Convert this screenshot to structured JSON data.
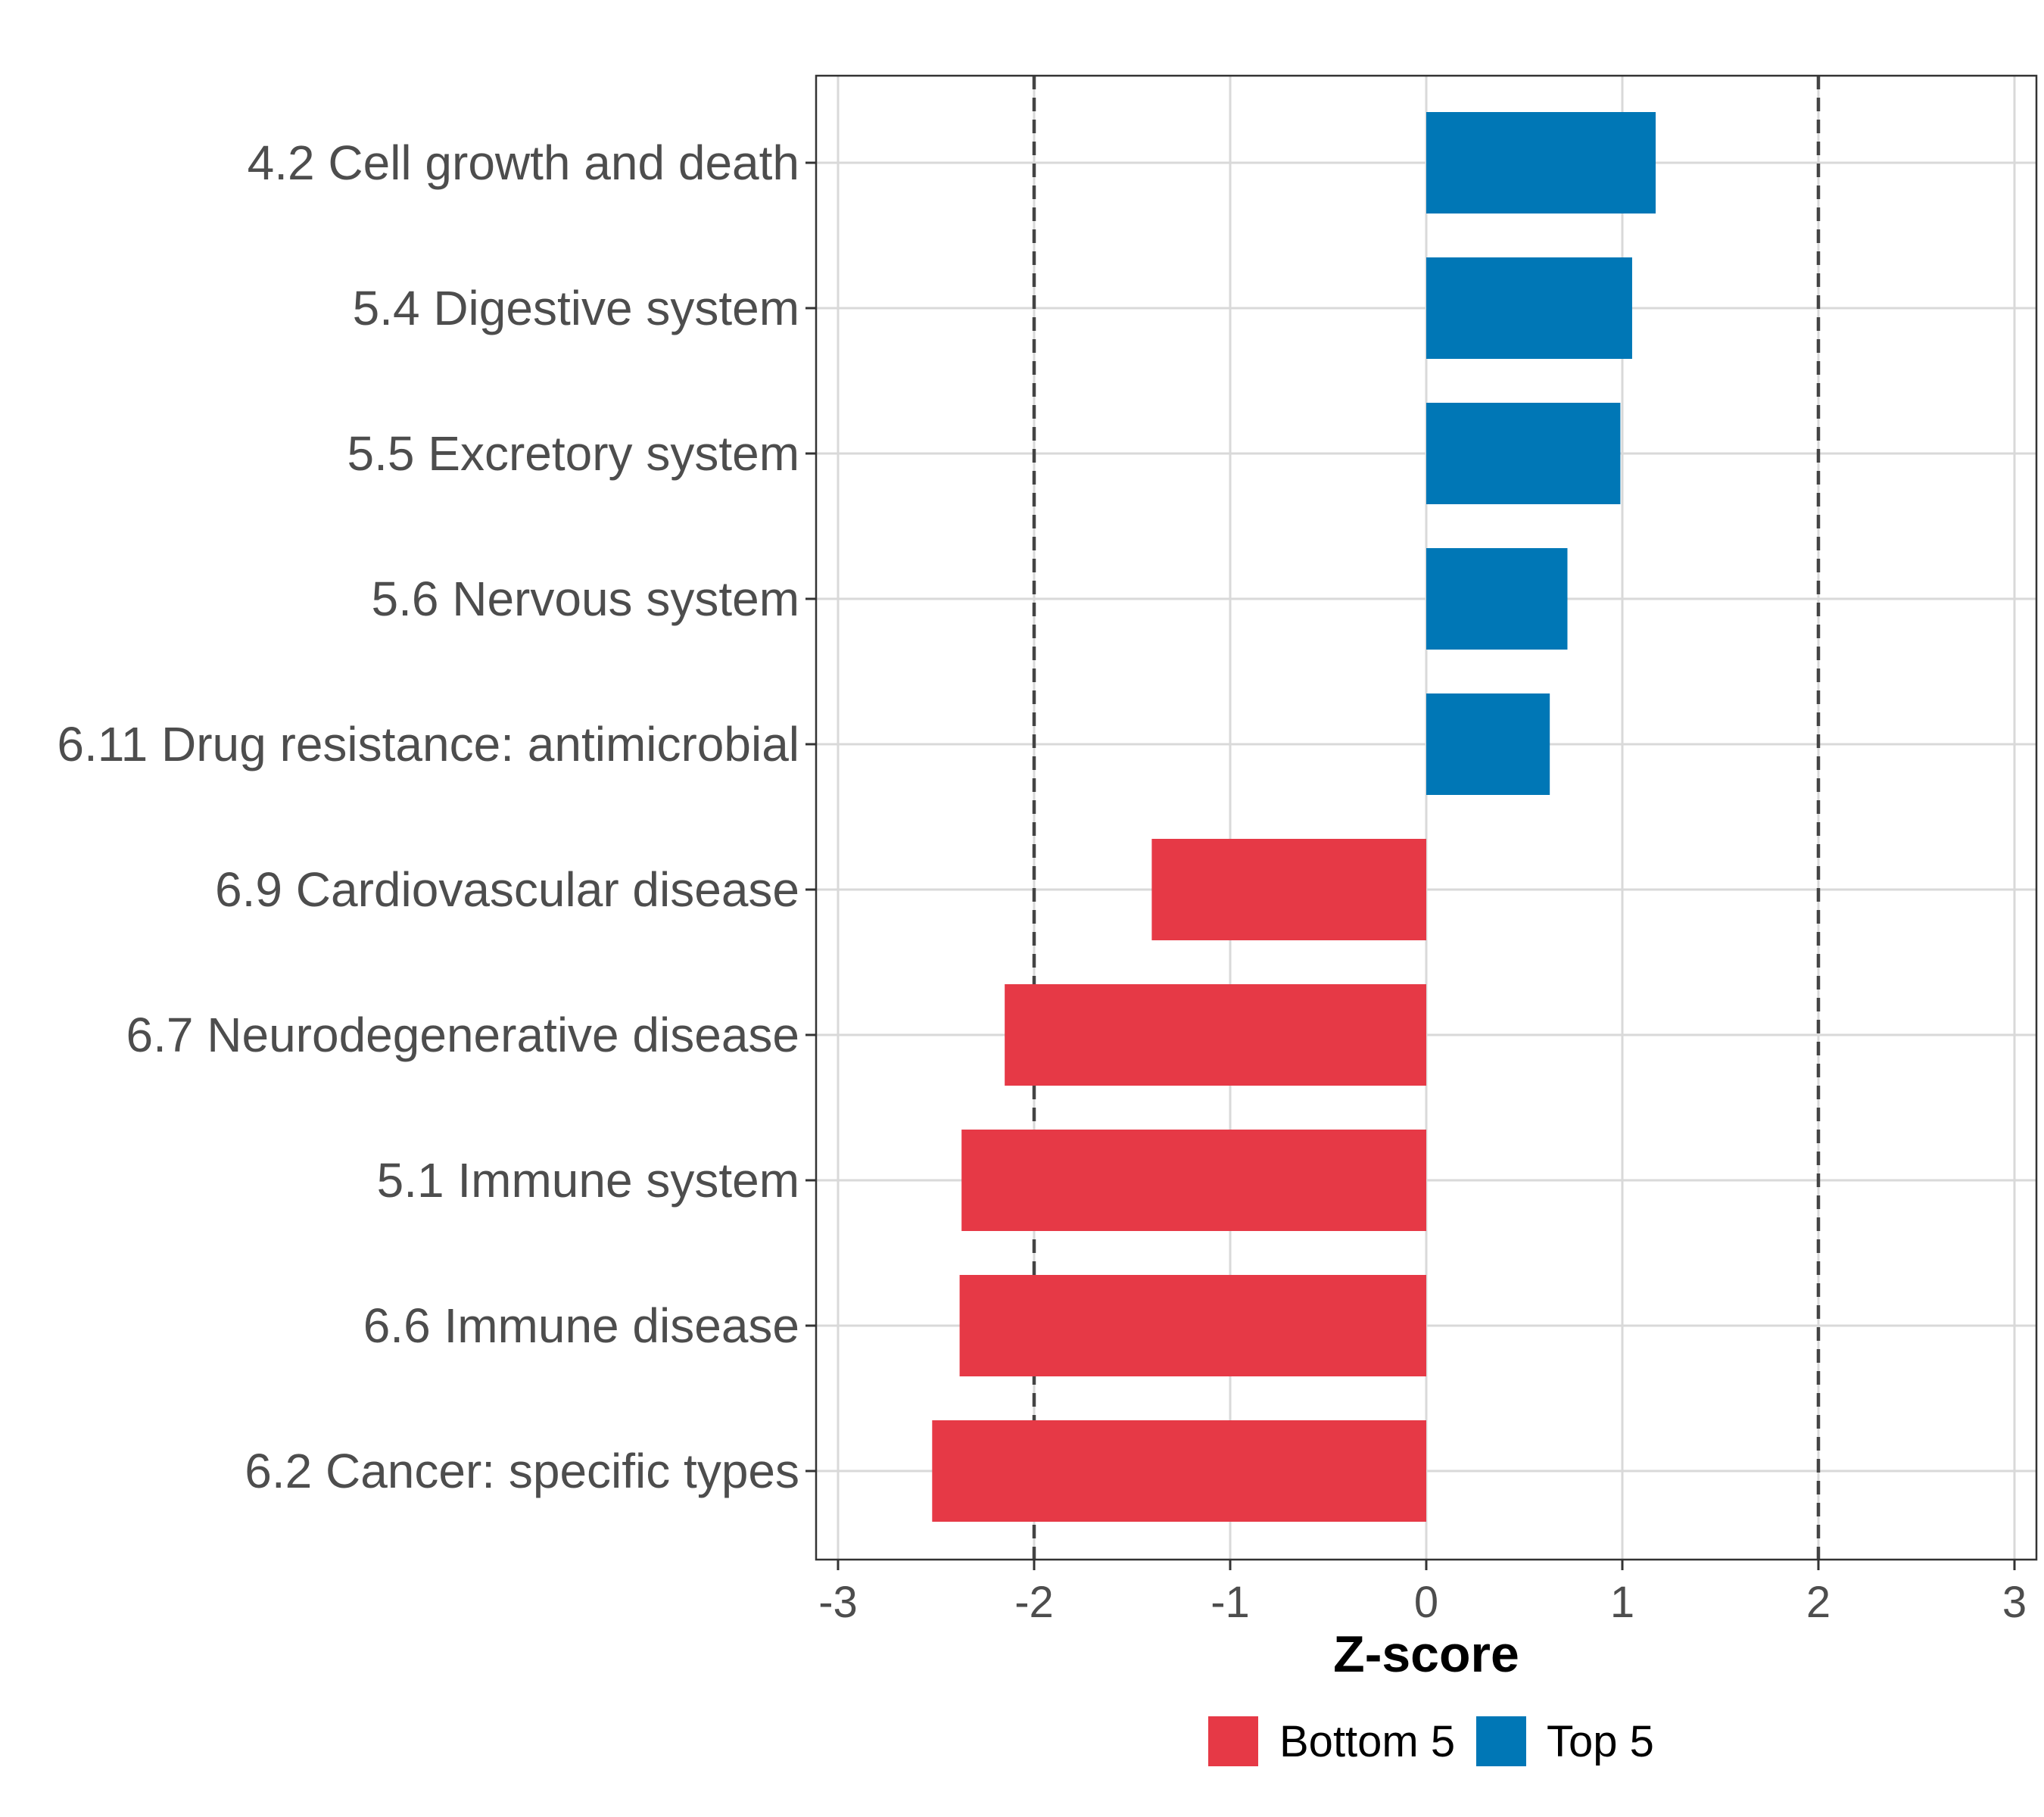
{
  "chart_data": {
    "type": "bar",
    "orientation": "horizontal",
    "title": "",
    "xlabel": "Z-score",
    "ylabel": "",
    "xlim": [
      -3.1,
      3.1
    ],
    "xticks": [
      -3,
      -2,
      -1,
      0,
      1,
      2,
      3
    ],
    "xtick_labels": [
      "-3",
      "-2",
      "-1",
      "0",
      "1",
      "2",
      "3"
    ],
    "grid": true,
    "reference_lines": [
      -2,
      2
    ],
    "categories": [
      "4.2 Cell growth and death",
      "5.4 Digestive system",
      "5.5 Excretory system",
      "5.6 Nervous system",
      "6.11 Drug resistance: antimicrobial",
      "6.9 Cardiovascular disease",
      "6.7 Neurodegenerative disease",
      "5.1 Immune system",
      "6.6 Immune disease",
      "6.2 Cancer: specific types"
    ],
    "values": [
      1.17,
      1.05,
      0.99,
      0.72,
      0.63,
      -1.4,
      -2.15,
      -2.37,
      -2.38,
      -2.52
    ],
    "groups": [
      "top",
      "top",
      "top",
      "top",
      "top",
      "bottom",
      "bottom",
      "bottom",
      "bottom",
      "bottom"
    ],
    "legend": [
      {
        "key": "bottom",
        "label": "Bottom 5",
        "color": "#E63946"
      },
      {
        "key": "top",
        "label": "Top 5",
        "color": "#0077B6"
      }
    ],
    "legend_position": "bottom"
  }
}
